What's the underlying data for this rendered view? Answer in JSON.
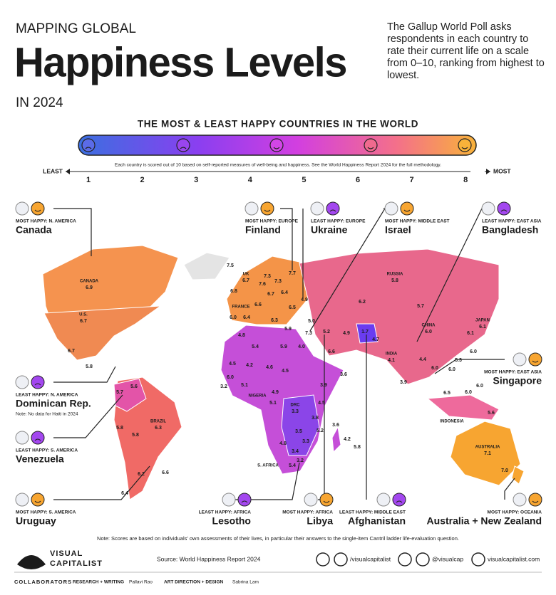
{
  "header": {
    "kicker": "MAPPING GLOBAL",
    "title": "Happiness Levels",
    "year": "IN 2024",
    "description": "The Gallup World Poll asks respondents in each country to rate their current life on a scale from 0–10, ranking from highest to lowest."
  },
  "scale": {
    "title": "THE MOST & LEAST HAPPY COUNTRIES IN THE WORLD",
    "note": "Each country is scored out of 10 based on self-reported measures of well-being and happiness. See the World Happiness Report 2024 for the full methodology.",
    "least": "LEAST",
    "most": "MOST",
    "ticks": [
      "1",
      "2",
      "3",
      "4",
      "5",
      "6",
      "7",
      "8"
    ]
  },
  "callouts": [
    {
      "label": "MOST HAPPY: N. AMERICA",
      "country": "Canada"
    },
    {
      "label": "MOST HAPPY: EUROPE",
      "country": "Finland"
    },
    {
      "label": "LEAST HAPPY: EUROPE",
      "country": "Ukraine"
    },
    {
      "label": "MOST HAPPY: MIDDLE EAST",
      "country": "Israel"
    },
    {
      "label": "LEAST HAPPY: EAST ASIA",
      "country": "Bangladesh"
    },
    {
      "label": "LEAST HAPPY: N. AMERICA",
      "country": "Dominican Rep.",
      "note": "Note: No data for Haiti in 2024"
    },
    {
      "label": "MOST HAPPY: EAST ASIA",
      "country": "Singapore"
    },
    {
      "label": "LEAST HAPPY: S. AMERICA",
      "country": "Venezuela"
    },
    {
      "label": "MOST HAPPY: S. AMERICA",
      "country": "Uruguay"
    },
    {
      "label": "LEAST HAPPY: AFRICA",
      "country": "Lesotho"
    },
    {
      "label": "MOST HAPPY: AFRICA",
      "country": "Libya"
    },
    {
      "label": "LEAST HAPPY: MIDDLE EAST",
      "country": "Afghanistan"
    },
    {
      "label": "MOST HAPPY: OCEANIA",
      "country": "Australia + New Zealand"
    }
  ],
  "map_labels": [
    {
      "name": "CANADA",
      "score": "6.9"
    },
    {
      "name": "U.S.",
      "score": "6.7"
    },
    {
      "score": "6.7"
    },
    {
      "score": "5.8"
    },
    {
      "score": "5.6"
    },
    {
      "score": "5.7"
    },
    {
      "score": "5.8"
    },
    {
      "score": "5.8"
    },
    {
      "name": "BRAZIL",
      "score": "6.3"
    },
    {
      "score": "6.2"
    },
    {
      "score": "6.6"
    },
    {
      "score": "6.4"
    },
    {
      "score": "7.5"
    },
    {
      "name": "UK",
      "score": "6.7"
    },
    {
      "score": "6.8"
    },
    {
      "name": "FRANCE"
    },
    {
      "score": "6.0"
    },
    {
      "score": "6.4"
    },
    {
      "score": "7.6"
    },
    {
      "score": "7.3"
    },
    {
      "score": "7.3"
    },
    {
      "score": "7.7"
    },
    {
      "score": "6.7"
    },
    {
      "score": "6.4"
    },
    {
      "score": "6.6"
    },
    {
      "score": "6.5"
    },
    {
      "score": "6.3"
    },
    {
      "score": "4.9"
    },
    {
      "score": "5.0"
    },
    {
      "score": "5.9"
    },
    {
      "score": "7.3"
    },
    {
      "score": "5.2"
    },
    {
      "score": "4.9"
    },
    {
      "score": "1.7"
    },
    {
      "score": "4.7"
    },
    {
      "name": "RUSSIA",
      "score": "5.8"
    },
    {
      "score": "6.2"
    },
    {
      "score": "5.7"
    },
    {
      "name": "CHINA",
      "score": "6.0"
    },
    {
      "name": "JAPAN",
      "score": "6.1"
    },
    {
      "score": "6.1"
    },
    {
      "name": "INDIA",
      "score": "4.1"
    },
    {
      "score": "4.4"
    },
    {
      "score": "6.6"
    },
    {
      "score": "4.0"
    },
    {
      "score": "5.9"
    },
    {
      "score": "5.4"
    },
    {
      "score": "4.8"
    },
    {
      "score": "4.5"
    },
    {
      "score": "4.2"
    },
    {
      "score": "4.6"
    },
    {
      "score": "4.5"
    },
    {
      "score": "6.0"
    },
    {
      "score": "5.1"
    },
    {
      "score": "3.2"
    },
    {
      "name": "NIGERIA"
    },
    {
      "score": "4.9"
    },
    {
      "score": "5.1"
    },
    {
      "score": "3.9"
    },
    {
      "score": "3.6"
    },
    {
      "score": "4.5"
    },
    {
      "name": "DRC",
      "score": "3.3"
    },
    {
      "score": "3.8"
    },
    {
      "score": "3.6"
    },
    {
      "score": "4.2"
    },
    {
      "score": "5.8"
    },
    {
      "score": "3.5"
    },
    {
      "score": "5.2"
    },
    {
      "score": "3.3"
    },
    {
      "score": "4.8"
    },
    {
      "score": "3.4"
    },
    {
      "score": "3.2"
    },
    {
      "score": "5.4"
    },
    {
      "name": "S. AFRICA"
    },
    {
      "score": "3.9"
    },
    {
      "score": "6.0"
    },
    {
      "score": "5.3"
    },
    {
      "score": "6.0"
    },
    {
      "score": "6.0"
    },
    {
      "score": "6.5"
    },
    {
      "score": "6.0"
    },
    {
      "score": "6.0"
    },
    {
      "score": "5.6"
    },
    {
      "name": "INDONESIA"
    },
    {
      "name": "AUSTRALIA",
      "score": "7.1"
    },
    {
      "score": "7.0"
    }
  ],
  "footer": {
    "note": "Note: Scores are based on individuals' own assessments of their lives, in particular their answers to the single-item Cantril ladder life-evaluation question.",
    "brand": "VISUAL",
    "brand2": "CAPITALIST",
    "source": "Source: World Happiness Report 2024",
    "social1": "/visualcapitalist",
    "social2": "@visualcap",
    "website": "visualcapitalist.com",
    "collaborators": "COLLABORATORS",
    "research_role": "RESEARCH + WRITING",
    "research_name": "Pallavi Rao",
    "design_role": "ART DIRECTION + DESIGN",
    "design_name": "Sabrina Lam"
  }
}
